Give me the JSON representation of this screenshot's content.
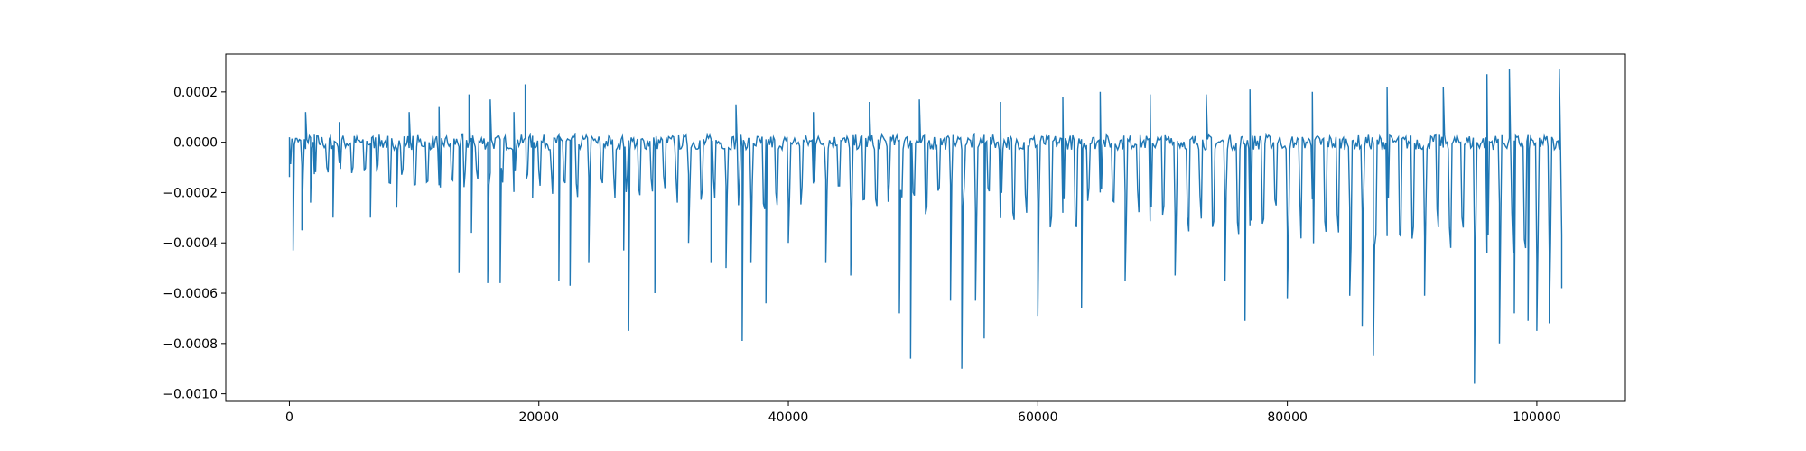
{
  "chart_data": {
    "type": "line",
    "title": "",
    "xlabel": "",
    "ylabel": "",
    "xlim": [
      -5100,
      107100
    ],
    "ylim": [
      -0.00103,
      0.00035
    ],
    "x_ticks": [
      0,
      20000,
      40000,
      60000,
      80000,
      100000
    ],
    "x_tick_labels": [
      "0",
      "20000",
      "40000",
      "60000",
      "80000",
      "100000"
    ],
    "y_ticks": [
      0.0002,
      0.0,
      -0.0002,
      -0.0004,
      -0.0006,
      -0.0008,
      -0.001
    ],
    "y_tick_labels": [
      "0.0002",
      "0.0000",
      "−0.0002",
      "−0.0004",
      "−0.0006",
      "−0.0008",
      "−0.0010"
    ],
    "grid": false,
    "legend": "none",
    "colors": {
      "series": "#1f77b4",
      "axes": "#000000",
      "background": "#ffffff"
    },
    "series": [
      {
        "x_start": 0,
        "x_end": 102000,
        "baseline": [
          0.0,
          2e-05
        ],
        "spike_period": 1000,
        "points": [
          [
            0,
            2e-05
          ],
          [
            300,
            -0.00043
          ],
          [
            700,
            0.0
          ],
          [
            1000,
            -0.00035
          ],
          [
            1300,
            0.00012
          ],
          [
            1700,
            -0.00024
          ],
          [
            2000,
            3e-05
          ],
          [
            3500,
            -0.0003
          ],
          [
            4000,
            8e-05
          ],
          [
            6500,
            -0.0003
          ],
          [
            8600,
            -0.00026
          ],
          [
            9600,
            0.00012
          ],
          [
            12000,
            0.00014
          ],
          [
            13600,
            -0.00052
          ],
          [
            14400,
            0.00019
          ],
          [
            14600,
            -0.00036
          ],
          [
            15900,
            -0.00056
          ],
          [
            16100,
            0.00017
          ],
          [
            16900,
            -0.00056
          ],
          [
            18000,
            0.00012
          ],
          [
            18900,
            0.00023
          ],
          [
            19500,
            -0.00022
          ],
          [
            21600,
            -0.00055
          ],
          [
            22500,
            -0.00057
          ],
          [
            24000,
            -0.00048
          ],
          [
            26800,
            -0.00043
          ],
          [
            27200,
            -0.00075
          ],
          [
            29300,
            -0.0006
          ],
          [
            32000,
            -0.0004
          ],
          [
            33800,
            -0.00048
          ],
          [
            35000,
            -0.0005
          ],
          [
            35800,
            0.00015
          ],
          [
            36300,
            -0.00079
          ],
          [
            37000,
            -0.00048
          ],
          [
            38200,
            -0.00064
          ],
          [
            40000,
            -0.0004
          ],
          [
            42000,
            0.00012
          ],
          [
            43000,
            -0.00048
          ],
          [
            45000,
            -0.00053
          ],
          [
            46500,
            0.00016
          ],
          [
            48900,
            -0.00068
          ],
          [
            49800,
            -0.00086
          ],
          [
            50500,
            0.00017
          ],
          [
            53000,
            -0.00063
          ],
          [
            53900,
            -0.0009
          ],
          [
            55000,
            -0.00063
          ],
          [
            55700,
            -0.00078
          ],
          [
            57000,
            0.00016
          ],
          [
            60000,
            -0.00069
          ],
          [
            62000,
            0.00018
          ],
          [
            63500,
            -0.00066
          ],
          [
            65000,
            0.0002
          ],
          [
            67000,
            -0.00055
          ],
          [
            69000,
            0.00019
          ],
          [
            71000,
            -0.00053
          ],
          [
            73500,
            0.00019
          ],
          [
            75000,
            -0.00055
          ],
          [
            76600,
            -0.00071
          ],
          [
            77000,
            0.00021
          ],
          [
            80000,
            -0.00062
          ],
          [
            82000,
            0.0002
          ],
          [
            85000,
            -0.00061
          ],
          [
            86000,
            -0.00073
          ],
          [
            86900,
            -0.00085
          ],
          [
            88000,
            0.00022
          ],
          [
            91000,
            -0.00061
          ],
          [
            92500,
            0.00022
          ],
          [
            95000,
            -0.00096
          ],
          [
            96000,
            0.00027
          ],
          [
            97000,
            -0.0008
          ],
          [
            97800,
            0.00029
          ],
          [
            98200,
            -0.00068
          ],
          [
            99300,
            -0.00071
          ],
          [
            100000,
            -0.00075
          ],
          [
            101000,
            -0.00072
          ],
          [
            101800,
            0.00029
          ],
          [
            102000,
            -0.00058
          ]
        ]
      }
    ]
  }
}
